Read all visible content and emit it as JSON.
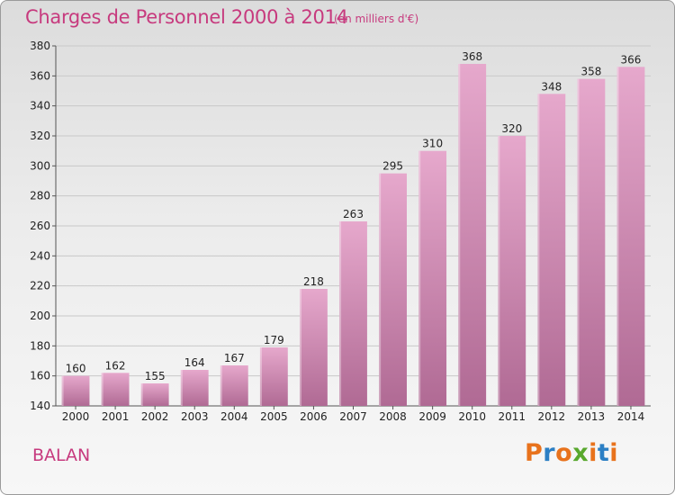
{
  "header": {
    "title": "Charges de Personnel 2000 à 2014",
    "unit": "(en milliers d'€)"
  },
  "footer": {
    "commune": "BALAN",
    "logo_text": "Proxiti"
  },
  "colors": {
    "accent": "#c73a7e",
    "bar_top": "#e6a8cc",
    "bar_bottom": "#b06a94",
    "logo": [
      "#e8721c",
      "#2c7fc4",
      "#e8721c",
      "#58a82d",
      "#e8721c",
      "#2c7fc4",
      "#e8721c"
    ]
  },
  "chart_data": {
    "type": "bar",
    "title": "Charges de Personnel 2000 à 2014",
    "subtitle": "(en milliers d'€)",
    "xlabel": "",
    "ylabel": "",
    "categories": [
      "2000",
      "2001",
      "2002",
      "2003",
      "2004",
      "2005",
      "2006",
      "2007",
      "2008",
      "2009",
      "2010",
      "2011",
      "2012",
      "2013",
      "2014"
    ],
    "values": [
      160,
      162,
      155,
      164,
      167,
      179,
      218,
      263,
      295,
      310,
      368,
      320,
      348,
      358,
      366
    ],
    "ylim": [
      140,
      380
    ],
    "yticks": [
      140,
      160,
      180,
      200,
      220,
      240,
      260,
      280,
      300,
      320,
      340,
      360,
      380
    ],
    "grid": true,
    "data_labels": true
  }
}
